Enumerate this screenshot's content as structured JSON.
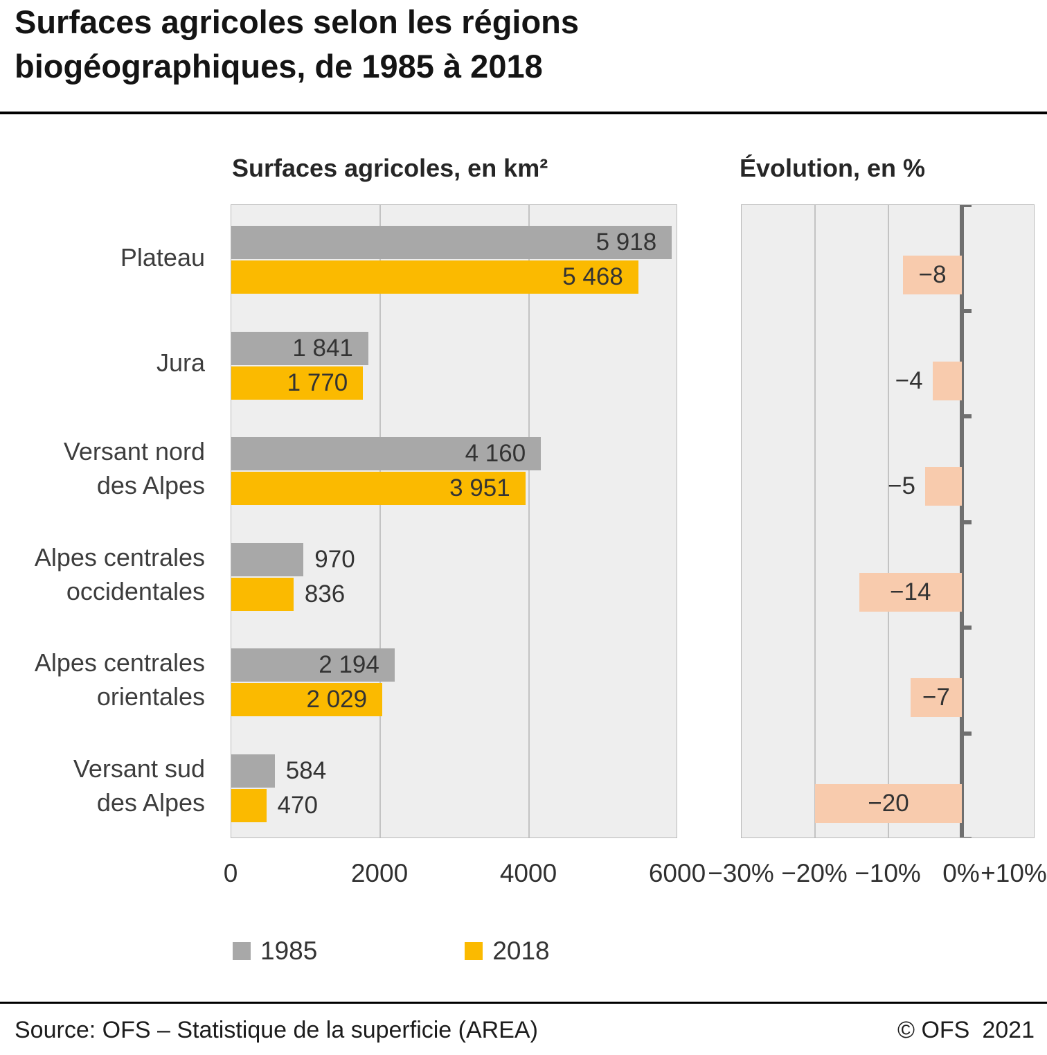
{
  "title": {
    "lines": [
      "Surfaces agricoles selon les régions",
      "biogéographiques, de 1985 à 2018"
    ]
  },
  "panels": {
    "left": "Surfaces agricoles, en km²",
    "right": "Évolution, en %"
  },
  "chart_data": {
    "type": "bar",
    "orientation": "horizontal",
    "categories": [
      "Plateau",
      "Jura",
      "Versant nord\ndes Alpes",
      "Alpes centrales\noccidentales",
      "Alpes centrales\norientales",
      "Versant sud\ndes Alpes"
    ],
    "series": [
      {
        "name": "1985",
        "color": "#a8a8a8",
        "values": [
          5918,
          1841,
          4160,
          970,
          2194,
          584
        ],
        "labels": [
          "5 918",
          "1 841",
          "4 160",
          "970",
          "2 194",
          "584"
        ]
      },
      {
        "name": "2018",
        "color": "#fbba00",
        "values": [
          5468,
          1770,
          3951,
          836,
          2029,
          470
        ],
        "labels": [
          "5 468",
          "1 770",
          "3 951",
          "836",
          "2 029",
          "470"
        ]
      }
    ],
    "evolution": {
      "name": "Évolution, en %",
      "color": "#f8cbad",
      "values": [
        -8,
        -4,
        -5,
        -14,
        -7,
        -20
      ],
      "labels": [
        "−8",
        "−4",
        "−5",
        "−14",
        "−7",
        "−20"
      ]
    },
    "left_axis": {
      "max": 6000,
      "ticks": [
        0,
        2000,
        4000,
        6000
      ],
      "tick_labels": [
        "0",
        "2000",
        "4000",
        "6000"
      ]
    },
    "right_axis": {
      "min": -30,
      "max": 10,
      "ticks": [
        -30,
        -20,
        -10,
        0,
        10
      ],
      "tick_labels": [
        "−30%",
        "−20%",
        "−10%",
        "0%",
        "+10%"
      ]
    },
    "grid": true,
    "legend_position": "bottom"
  },
  "footer": {
    "source": "Source: OFS – Statistique de la superficie (AREA)",
    "copyright": "© OFS",
    "year": "2021"
  }
}
